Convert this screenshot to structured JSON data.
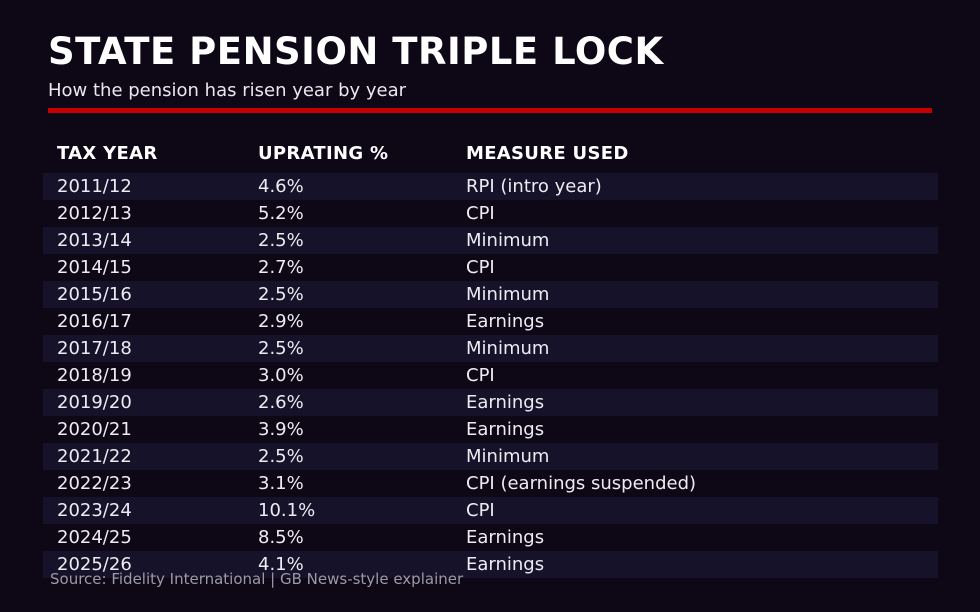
{
  "chart_data": {
    "type": "table",
    "title": "STATE PENSION TRIPLE LOCK",
    "subtitle": "How the pension has risen year by year",
    "columns": [
      "TAX YEAR",
      "UPRATING %",
      "MEASURE USED"
    ],
    "rows": [
      [
        "2011/12",
        "4.6%",
        "RPI (intro year)"
      ],
      [
        "2012/13",
        "5.2%",
        "CPI"
      ],
      [
        "2013/14",
        "2.5%",
        "Minimum"
      ],
      [
        "2014/15",
        "2.7%",
        "CPI"
      ],
      [
        "2015/16",
        "2.5%",
        "Minimum"
      ],
      [
        "2016/17",
        "2.9%",
        "Earnings"
      ],
      [
        "2017/18",
        "2.5%",
        "Minimum"
      ],
      [
        "2018/19",
        "3.0%",
        "CPI"
      ],
      [
        "2019/20",
        "2.6%",
        "Earnings"
      ],
      [
        "2020/21",
        "3.9%",
        "Earnings"
      ],
      [
        "2021/22",
        "2.5%",
        "Minimum"
      ],
      [
        "2022/23",
        "3.1%",
        "CPI (earnings suspended)"
      ],
      [
        "2023/24",
        "10.1%",
        "CPI"
      ],
      [
        "2024/25",
        "8.5%",
        "Earnings"
      ],
      [
        "2025/26",
        "4.1%",
        "Earnings"
      ]
    ],
    "uprating_values_pct": [
      4.6,
      5.2,
      2.5,
      2.7,
      2.5,
      2.9,
      2.5,
      3.0,
      2.6,
      3.9,
      2.5,
      3.1,
      10.1,
      8.5,
      4.1
    ],
    "source": "Source: Fidelity International | GB News-style explainer",
    "layout": {
      "striped_rows": "odd (1st, 3rd, ...)",
      "grid": "off",
      "legend": "none"
    }
  },
  "colors": {
    "background": "#0d0716",
    "stripe": "#151229",
    "accent_red": "#c40000",
    "text": "#edecf2",
    "muted": "#9d9aa8"
  }
}
